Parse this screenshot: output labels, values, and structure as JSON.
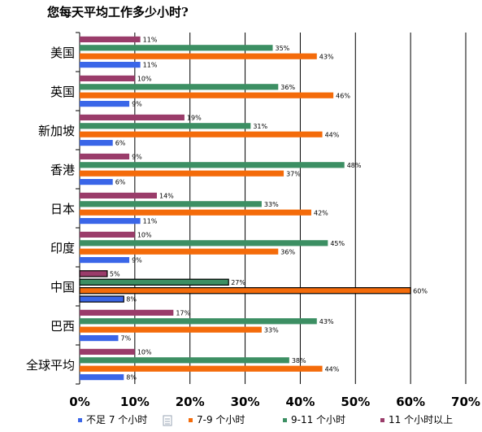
{
  "title": "您每天平均工作多少小时?",
  "colors": {
    "lt7": "#3a66e8",
    "h7to9": "#f46b0a",
    "h9to11": "#3c8f63",
    "gt11": "#9a3c6a",
    "grid": "#000000"
  },
  "chart_data": {
    "type": "bar",
    "orientation": "horizontal",
    "xlim": [
      0,
      70
    ],
    "x_ticks": [
      "0%",
      "10%",
      "20%",
      "30%",
      "40%",
      "50%",
      "60%",
      "70%"
    ],
    "grid": true,
    "legend_position": "bottom",
    "categories": [
      "美国",
      "英国",
      "新加坡",
      "香港",
      "日本",
      "印度",
      "中国",
      "巴西",
      "全球平均"
    ],
    "highlight_category": "中国",
    "series": [
      {
        "name": "11 个小时以上",
        "color_key": "gt11",
        "values": [
          11,
          10,
          19,
          9,
          14,
          10,
          5,
          17,
          10
        ],
        "labels": [
          "11%",
          "10%",
          "19%",
          "9%",
          "14%",
          "10%",
          "5%",
          "17%",
          "10%"
        ]
      },
      {
        "name": "9-11 个小时",
        "color_key": "h9to11",
        "values": [
          35,
          36,
          31,
          48,
          33,
          45,
          27,
          43,
          38
        ],
        "labels": [
          "35%",
          "36%",
          "31%",
          "48%",
          "33%",
          "45%",
          "27%",
          "43%",
          "38%"
        ]
      },
      {
        "name": "7-9 个小时",
        "color_key": "h7to9",
        "values": [
          43,
          46,
          44,
          37,
          42,
          36,
          60,
          33,
          44
        ],
        "labels": [
          "43%",
          "46%",
          "44%",
          "37%",
          "42%",
          "36%",
          "60%",
          "33%",
          "44%"
        ]
      },
      {
        "name": "不足 7 个小时",
        "color_key": "lt7",
        "values": [
          11,
          9,
          6,
          6,
          11,
          9,
          8,
          7,
          8
        ],
        "labels": [
          "11%",
          "9%",
          "6%",
          "6%",
          "11%",
          "9%",
          "8%",
          "7%",
          "8%"
        ]
      }
    ],
    "legend_order": [
      "不足 7 个小时",
      "7-9 个小时",
      "9-11 个小时",
      "11 个小时以上"
    ]
  }
}
